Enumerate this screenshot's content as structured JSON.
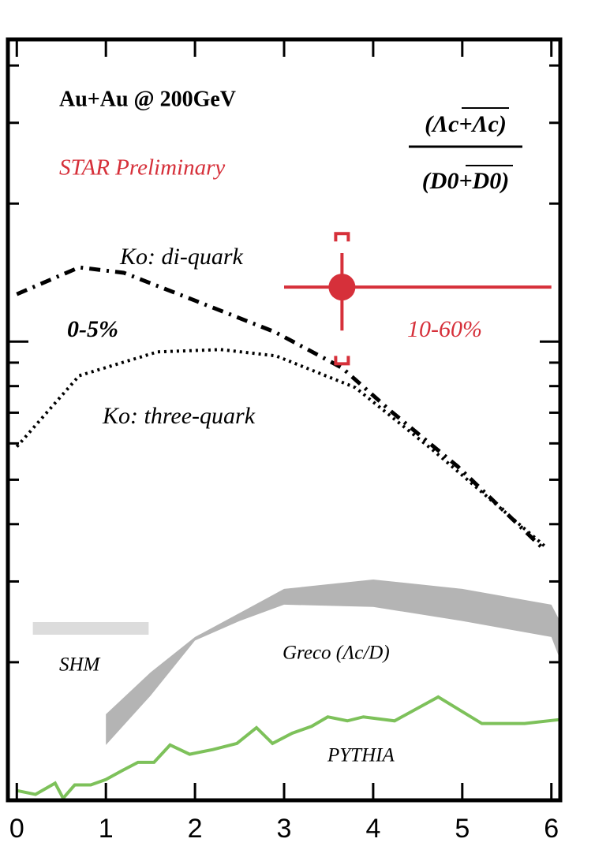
{
  "chart_data": {
    "type": "line",
    "title": "Au+Au @ 200GeV",
    "subtitle": "STAR Preliminary",
    "ratio_numerator": "(Λc+Λc)",
    "ratio_denominator": "(D0+D0)",
    "annotations": [
      {
        "text": "0-5%",
        "color": "#000000"
      },
      {
        "text": "10-60%",
        "color": "#d6303a"
      }
    ],
    "xlim": [
      -0.1,
      6.1
    ],
    "ylim": [
      0.1,
      4.56
    ],
    "log_y": true,
    "xticks": [
      0,
      1,
      2,
      3,
      4,
      5,
      6
    ],
    "yticks": [
      0.2,
      0.3,
      0.4,
      0.5,
      0.6,
      0.7,
      0.8,
      0.9,
      1,
      2,
      3,
      4
    ],
    "series": [
      {
        "name": "Ko: di-quark",
        "kind": "dashdot",
        "color": "#000000",
        "x": [
          0.0,
          0.7,
          1.2,
          2.0,
          2.9,
          3.65,
          4.2,
          4.95,
          5.92
        ],
        "values": [
          1.269,
          1.452,
          1.413,
          1.229,
          1.049,
          0.877,
          0.705,
          0.534,
          0.352
        ]
      },
      {
        "name": "Ko: three-quark",
        "kind": "dotted",
        "color": "#000000",
        "x": [
          0.0,
          0.7,
          1.58,
          2.29,
          2.91,
          3.8,
          4.68,
          5.92
        ],
        "values": [
          0.59,
          0.843,
          0.95,
          0.961,
          0.931,
          0.794,
          0.578,
          0.359
        ]
      },
      {
        "name": "Greco (Λc/D)",
        "kind": "band",
        "color": "#b4b4b4",
        "x": [
          1,
          1.5,
          2,
          2.5,
          3,
          4,
          5,
          6,
          6.1
        ],
        "low": [
          0.132,
          0.169,
          0.223,
          0.246,
          0.267,
          0.264,
          0.246,
          0.227,
          0.202
        ],
        "high": [
          0.154,
          0.19,
          0.227,
          0.256,
          0.289,
          0.303,
          0.289,
          0.267,
          0.245
        ]
      },
      {
        "name": "SHM",
        "kind": "hbar",
        "color": "#dcdcdc",
        "x_low": [
          0.18
        ],
        "x_high": [
          1.48
        ],
        "values": [
          0.237
        ]
      },
      {
        "name": "PYTHIA",
        "kind": "solid",
        "color": "#7dc15a",
        "x": [
          0.0,
          0.21,
          0.43,
          0.52,
          0.65,
          0.83,
          1.0,
          1.18,
          1.36,
          1.54,
          1.72,
          1.94,
          2.2,
          2.47,
          2.69,
          2.87,
          3.09,
          3.31,
          3.49,
          3.71,
          3.89,
          4.24,
          4.73,
          5.22,
          5.7,
          6.1
        ],
        "values": [
          0.105,
          0.103,
          0.109,
          0.101,
          0.108,
          0.108,
          0.111,
          0.116,
          0.121,
          0.121,
          0.132,
          0.126,
          0.129,
          0.133,
          0.144,
          0.133,
          0.14,
          0.145,
          0.152,
          0.149,
          0.152,
          0.149,
          0.168,
          0.147,
          0.147,
          0.15
        ]
      },
      {
        "name": "STAR",
        "kind": "point",
        "color": "#d6303a",
        "x": [
          3.65
        ],
        "x_low": [
          3.0
        ],
        "x_high": [
          6.0
        ],
        "values": [
          1.315
        ],
        "stat_low": [
          1.057
        ],
        "stat_high": [
          1.56
        ],
        "sys_low": [
          0.895
        ],
        "sys_high": [
          1.72
        ]
      }
    ]
  }
}
